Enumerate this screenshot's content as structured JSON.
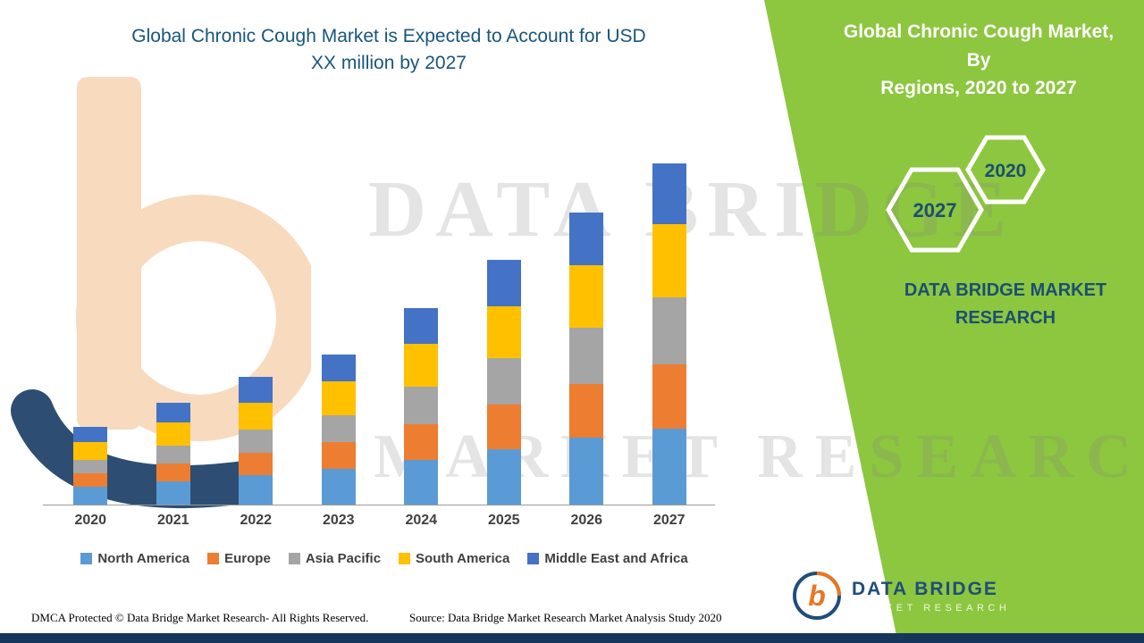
{
  "header": {
    "title_line1": "Global Chronic Cough Market is Expected to Account for USD",
    "title_line2": "XX million by 2027"
  },
  "side_panel": {
    "title_line1": "Global Chronic Cough Market, By",
    "title_line2": "Regions, 2020 to 2027",
    "hexagon_back_label": "2027",
    "hexagon_front_label": "2020",
    "brand_line1": "DATA BRIDGE MARKET",
    "brand_line2": "RESEARCH",
    "bg_color": "#8DC63F"
  },
  "watermark": {
    "line1": "DATA BRIDGE",
    "line2": "MARKET RESEARCH"
  },
  "chart_data": {
    "type": "bar",
    "stacked": true,
    "title": "Global Chronic Cough Market is Expected to Account for USD XX million by 2027",
    "xlabel": "",
    "ylabel": "",
    "y_axis_visible": false,
    "grid": false,
    "legend_position": "bottom",
    "categories": [
      "2020",
      "2021",
      "2022",
      "2023",
      "2024",
      "2025",
      "2026",
      "2027"
    ],
    "series": [
      {
        "name": "North America",
        "color": "#5B9BD5",
        "values": [
          20,
          26,
          33,
          40,
          50,
          62,
          75,
          85
        ]
      },
      {
        "name": "Europe",
        "color": "#ED7D31",
        "values": [
          15,
          20,
          25,
          30,
          40,
          50,
          60,
          72
        ]
      },
      {
        "name": "Asia Pacific",
        "color": "#A5A5A5",
        "values": [
          15,
          20,
          26,
          30,
          42,
          52,
          63,
          75
        ]
      },
      {
        "name": "South America",
        "color": "#FFC000",
        "values": [
          20,
          26,
          30,
          38,
          48,
          58,
          70,
          82
        ]
      },
      {
        "name": "Middle East and Africa",
        "color": "#4472C4",
        "values": [
          17,
          22,
          29,
          30,
          40,
          52,
          59,
          68
        ]
      }
    ],
    "totals": [
      87,
      114,
      143,
      168,
      220,
      274,
      327,
      382
    ]
  },
  "footer": {
    "dmca": "DMCA Protected © Data Bridge Market Research- All Rights Reserved.",
    "source": "Source: Data Bridge Market Research Market Analysis Study 2020"
  },
  "logo": {
    "name": "DATA BRIDGE",
    "tagline": "MARKET RESEARCH"
  }
}
